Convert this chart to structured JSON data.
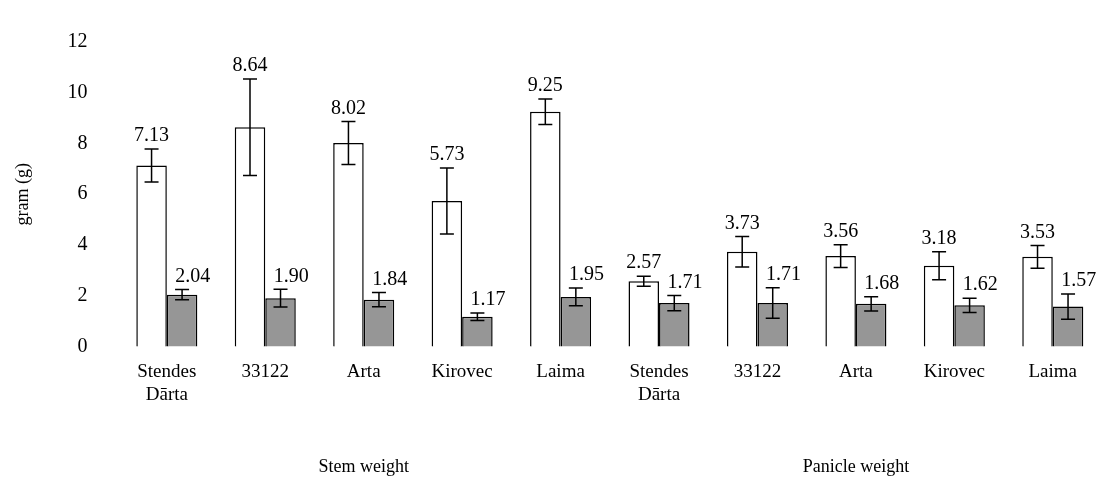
{
  "chart_data": {
    "type": "bar",
    "ylabel": "gram (g)",
    "categories": [
      "Stendes Dārta",
      "33122",
      "Arta",
      "Kirovec",
      "Laima",
      "Stendes Dārta",
      "33122",
      "Arta",
      "Kirovec",
      "Laima"
    ],
    "series": [
      {
        "color": "#ffffff",
        "values": [
          7.13,
          8.64,
          8.02,
          5.73,
          9.25,
          2.57,
          3.73,
          3.56,
          3.18,
          3.53
        ],
        "errors": [
          0.65,
          1.9,
          0.85,
          1.3,
          0.5,
          0.2,
          0.6,
          0.45,
          0.55,
          0.45
        ],
        "value_labels": [
          "7.13",
          "8.64",
          "8.02",
          "5.73",
          "9.25",
          "2.57",
          "3.73",
          "3.56",
          "3.18",
          "3.53"
        ]
      },
      {
        "color": "#969696",
        "values": [
          2.04,
          1.9,
          1.84,
          1.17,
          1.95,
          1.71,
          1.71,
          1.68,
          1.62,
          1.57
        ],
        "errors": [
          0.2,
          0.35,
          0.28,
          0.15,
          0.35,
          0.3,
          0.6,
          0.28,
          0.28,
          0.5
        ],
        "value_labels": [
          "2.04",
          "1.90",
          "1.84",
          "1.17",
          "1.95",
          "1.71",
          "1.71",
          "1.68",
          "1.62",
          "1.57"
        ]
      }
    ],
    "ylim": [
      0,
      12
    ],
    "yticks": [
      0,
      2,
      4,
      6,
      8,
      10,
      12
    ],
    "grid": false,
    "legend": false,
    "annotations": [
      "Stem weight",
      "Panicle weight"
    ]
  }
}
